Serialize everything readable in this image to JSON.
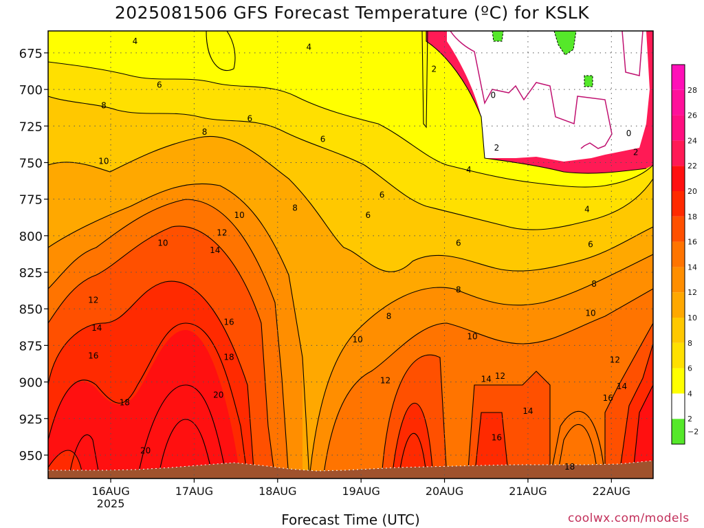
{
  "title": "2025081506 GFS Forecast Temperature (ºC) for KSLK",
  "credit": "coolwx.com/models",
  "chart_data": {
    "type": "heatmap",
    "title": "2025081506 GFS Forecast Temperature (ºC) for KSLK",
    "xlabel": "Forecast Time (UTC)",
    "ylabel": "",
    "x_range_hours_since_run": [
      0,
      174
    ],
    "x_ticks": [
      {
        "label": "16AUG",
        "sub": "2025",
        "hour": 18
      },
      {
        "label": "17AUG",
        "sub": "",
        "hour": 42
      },
      {
        "label": "18AUG",
        "sub": "",
        "hour": 66
      },
      {
        "label": "19AUG",
        "sub": "",
        "hour": 90
      },
      {
        "label": "20AUG",
        "sub": "",
        "hour": 114
      },
      {
        "label": "21AUG",
        "sub": "",
        "hour": 138
      },
      {
        "label": "22AUG",
        "sub": "",
        "hour": 162
      }
    ],
    "y_range_hPa": [
      966,
      660
    ],
    "y_ticks": [
      675,
      700,
      725,
      750,
      775,
      800,
      825,
      850,
      875,
      900,
      925,
      950
    ],
    "color_scale": {
      "levels": [
        -2,
        2,
        4,
        6,
        8,
        10,
        12,
        14,
        16,
        18,
        20,
        22,
        24,
        26,
        28
      ],
      "colors": [
        "#55e82a",
        "#ffffff",
        "#ffff00",
        "#ffe000",
        "#ffc800",
        "#ffa800",
        "#ff8e00",
        "#ff7400",
        "#ff5000",
        "#ff2a00",
        "#ff1010",
        "#ff1a55",
        "#ff0f80",
        "#ff109a",
        "#ff10b8"
      ],
      "labels": [
        "−2",
        "2",
        "4",
        "6",
        "8",
        "10",
        "12",
        "14",
        "16",
        "18",
        "20",
        "22",
        "24",
        "26",
        "28"
      ]
    },
    "contour_levels": [
      0,
      2,
      4,
      6,
      8,
      10,
      12,
      14,
      16,
      18,
      20
    ],
    "contour_labels": [
      {
        "text": "4",
        "hour": 25,
        "hPa": 667
      },
      {
        "text": "4",
        "hour": 75,
        "hPa": 671
      },
      {
        "text": "2",
        "hour": 111,
        "hPa": 686
      },
      {
        "text": "6",
        "hour": 32,
        "hPa": 697
      },
      {
        "text": "0",
        "hour": 128,
        "hPa": 704
      },
      {
        "text": "8",
        "hour": 16,
        "hPa": 711
      },
      {
        "text": "6",
        "hour": 58,
        "hPa": 720
      },
      {
        "text": "8",
        "hour": 45,
        "hPa": 729
      },
      {
        "text": "0",
        "hour": 167,
        "hPa": 730
      },
      {
        "text": "6",
        "hour": 79,
        "hPa": 734
      },
      {
        "text": "2",
        "hour": 129,
        "hPa": 740
      },
      {
        "text": "2",
        "hour": 169,
        "hPa": 743
      },
      {
        "text": "10",
        "hour": 16,
        "hPa": 749
      },
      {
        "text": "4",
        "hour": 121,
        "hPa": 755
      },
      {
        "text": "6",
        "hour": 96,
        "hPa": 772
      },
      {
        "text": "8",
        "hour": 71,
        "hPa": 781
      },
      {
        "text": "4",
        "hour": 155,
        "hPa": 782
      },
      {
        "text": "10",
        "hour": 55,
        "hPa": 786
      },
      {
        "text": "6",
        "hour": 92,
        "hPa": 786
      },
      {
        "text": "12",
        "hour": 50,
        "hPa": 798
      },
      {
        "text": "10",
        "hour": 33,
        "hPa": 805
      },
      {
        "text": "6",
        "hour": 118,
        "hPa": 805
      },
      {
        "text": "6",
        "hour": 156,
        "hPa": 806
      },
      {
        "text": "14",
        "hour": 48,
        "hPa": 810
      },
      {
        "text": "8",
        "hour": 157,
        "hPa": 833
      },
      {
        "text": "8",
        "hour": 118,
        "hPa": 837
      },
      {
        "text": "12",
        "hour": 13,
        "hPa": 844
      },
      {
        "text": "10",
        "hour": 156,
        "hPa": 853
      },
      {
        "text": "8",
        "hour": 98,
        "hPa": 855
      },
      {
        "text": "16",
        "hour": 52,
        "hPa": 859
      },
      {
        "text": "14",
        "hour": 14,
        "hPa": 863
      },
      {
        "text": "10",
        "hour": 122,
        "hPa": 869
      },
      {
        "text": "10",
        "hour": 89,
        "hPa": 871
      },
      {
        "text": "16",
        "hour": 13,
        "hPa": 882
      },
      {
        "text": "18",
        "hour": 52,
        "hPa": 883
      },
      {
        "text": "12",
        "hour": 163,
        "hPa": 885
      },
      {
        "text": "12",
        "hour": 130,
        "hPa": 896
      },
      {
        "text": "14",
        "hour": 126,
        "hPa": 898
      },
      {
        "text": "12",
        "hour": 97,
        "hPa": 899
      },
      {
        "text": "14",
        "hour": 165,
        "hPa": 903
      },
      {
        "text": "20",
        "hour": 49,
        "hPa": 909
      },
      {
        "text": "16",
        "hour": 161,
        "hPa": 911
      },
      {
        "text": "18",
        "hour": 22,
        "hPa": 914
      },
      {
        "text": "14",
        "hour": 138,
        "hPa": 920
      },
      {
        "text": "16",
        "hour": 129,
        "hPa": 938
      },
      {
        "text": "20",
        "hour": 28,
        "hPa": 947
      },
      {
        "text": "18",
        "hour": 150,
        "hPa": 958
      }
    ],
    "grid": true,
    "legend": "colorbar right"
  }
}
